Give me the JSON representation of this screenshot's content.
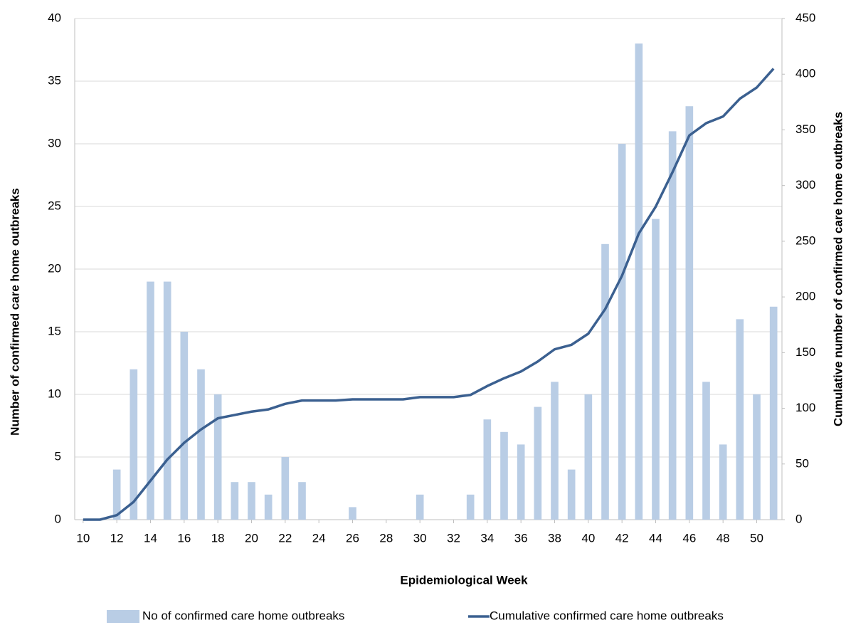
{
  "chart_data": {
    "type": "bar-line",
    "x_label": "Epidemiological Week",
    "y_label": "Number of confirmed care home outbreaks",
    "y2_label": "Cumulative number of confirmed care home outbreaks",
    "x": [
      10,
      11,
      12,
      13,
      14,
      15,
      16,
      17,
      18,
      19,
      20,
      21,
      22,
      23,
      24,
      25,
      26,
      27,
      28,
      29,
      30,
      31,
      32,
      33,
      34,
      35,
      36,
      37,
      38,
      39,
      40,
      41,
      42,
      43,
      44,
      45,
      46,
      47,
      48,
      49,
      50,
      51
    ],
    "xlim": [
      9.5,
      51.5
    ],
    "xticks": [
      10,
      12,
      14,
      16,
      18,
      20,
      22,
      24,
      26,
      28,
      30,
      32,
      34,
      36,
      38,
      40,
      42,
      44,
      46,
      48,
      50
    ],
    "ylim": [
      0,
      40
    ],
    "yticks": [
      0,
      5,
      10,
      15,
      20,
      25,
      30,
      35,
      40
    ],
    "y2lim": [
      0,
      450
    ],
    "y2ticks": [
      0,
      50,
      100,
      150,
      200,
      250,
      300,
      350,
      400,
      450
    ],
    "grid": true,
    "legend": "bottom",
    "series": [
      {
        "name": "No of confirmed care home outbreaks",
        "type": "bar",
        "color": "#b9cde5",
        "values": [
          0,
          0,
          4,
          12,
          19,
          19,
          15,
          12,
          10,
          3,
          3,
          2,
          5,
          3,
          0,
          0,
          1,
          0,
          0,
          0,
          2,
          0,
          0,
          2,
          8,
          7,
          6,
          9,
          11,
          4,
          10,
          22,
          30,
          38,
          24,
          31,
          33,
          11,
          6,
          16,
          10,
          17
        ]
      },
      {
        "name": "Cumulative confirmed care home outbreaks",
        "type": "line",
        "color": "#3b6090",
        "axis": "y2",
        "values": [
          0,
          0,
          4,
          16,
          35,
          54,
          69,
          81,
          91,
          94,
          97,
          99,
          104,
          107,
          107,
          107,
          108,
          108,
          108,
          108,
          110,
          110,
          110,
          112,
          120,
          127,
          133,
          142,
          153,
          157,
          167,
          189,
          219,
          257,
          281,
          312,
          345,
          356,
          362,
          378,
          388,
          405
        ]
      }
    ]
  }
}
